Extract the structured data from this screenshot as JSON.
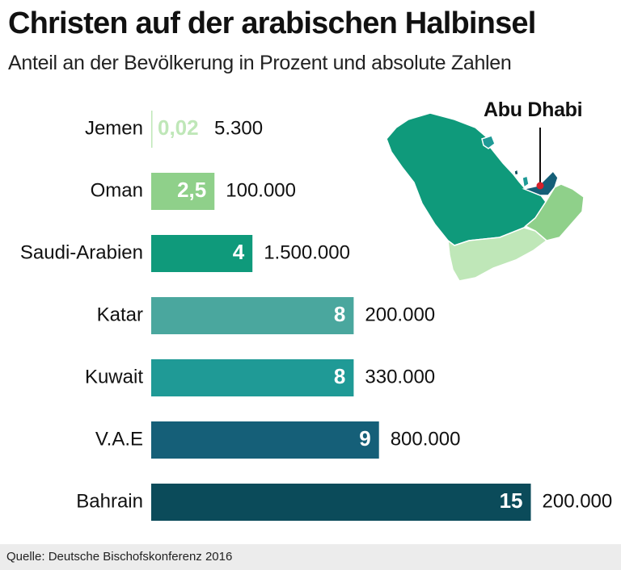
{
  "header": {
    "title": "Christen auf der arabischen Halbinsel",
    "subtitle": "Anteil an der Bevölkerung in Prozent und absolute Zahlen"
  },
  "map": {
    "label": "Abu Dhabi",
    "colors": {
      "saudi": "#0f9a7b",
      "yemen": "#bfe7b8",
      "oman": "#8fd08a",
      "uae": "#155f78",
      "qatar": "#1f9a96",
      "kuwait": "#1f9a96",
      "bahrain": "#0b4b5a",
      "marker": "#d6202a"
    }
  },
  "chart_data": {
    "type": "bar",
    "orientation": "horizontal",
    "categories": [
      "Jemen",
      "Oman",
      "Saudi-Arabien",
      "Katar",
      "Kuwait",
      "V.A.E",
      "Bahrain"
    ],
    "values": [
      0.02,
      2.5,
      4,
      8,
      8,
      9,
      15
    ],
    "value_labels": [
      "0,02",
      "2,5",
      "4",
      "8",
      "8",
      "9",
      "15"
    ],
    "absolute_labels": [
      "5.300",
      "100.000",
      "1.500.000",
      "200.000",
      "330.000",
      "800.000",
      "200.000"
    ],
    "colors": [
      "#bfe7b8",
      "#8fd08a",
      "#0f9a7b",
      "#4aa79e",
      "#1f9a96",
      "#155f78",
      "#0b4b5a"
    ],
    "xlim": [
      0,
      15
    ],
    "grid": false,
    "legend": "none"
  },
  "footer": {
    "source": "Quelle: Deutsche Bischofskonferenz 2016"
  }
}
